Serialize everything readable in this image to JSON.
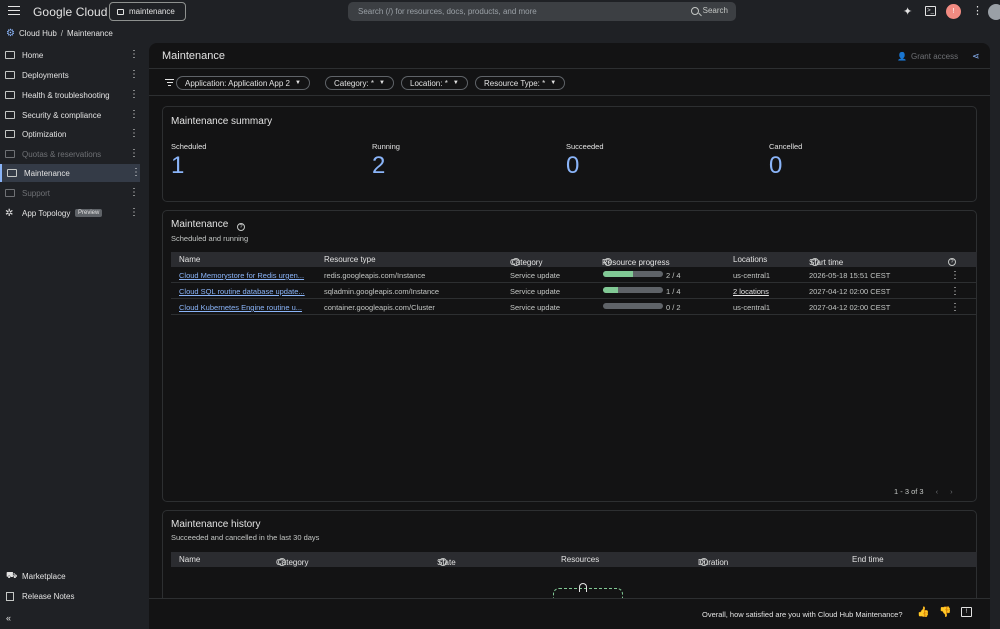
{
  "header": {
    "logo": "Google Cloud",
    "project": "maintenance",
    "search_placeholder": "Search (/) for resources, docs, products, and more",
    "search_button": "Search",
    "avatar_letter": "!"
  },
  "breadcrumb": {
    "root": "Cloud Hub",
    "sep": "/",
    "current": "Maintenance"
  },
  "sidebar": {
    "items": [
      {
        "label": "Home"
      },
      {
        "label": "Deployments"
      },
      {
        "label": "Health & troubleshooting"
      },
      {
        "label": "Security & compliance"
      },
      {
        "label": "Optimization"
      },
      {
        "label": "Quotas & reservations"
      },
      {
        "label": "Maintenance"
      },
      {
        "label": "Support"
      },
      {
        "label": "App Topology",
        "badge": "Preview"
      }
    ],
    "footer": [
      {
        "label": "Marketplace"
      },
      {
        "label": "Release Notes"
      }
    ],
    "collapse_icon": "«"
  },
  "page": {
    "title": "Maintenance",
    "grant_access": "Grant access"
  },
  "filters": [
    "Application: Application App 2",
    "Category: *",
    "Location: *",
    "Resource Type: *"
  ],
  "summary": {
    "title": "Maintenance summary",
    "stats": [
      {
        "label": "Scheduled",
        "value": "1"
      },
      {
        "label": "Running",
        "value": "2"
      },
      {
        "label": "Succeeded",
        "value": "0"
      },
      {
        "label": "Cancelled",
        "value": "0"
      }
    ]
  },
  "maintenance": {
    "title": "Maintenance",
    "subtitle": "Scheduled and running",
    "columns": [
      "Name",
      "Resource type",
      "Category",
      "Resource progress",
      "Locations",
      "Start time"
    ],
    "rows": [
      {
        "name": "Cloud Memorystore for Redis urgen...",
        "type": "redis.googleapis.com/Instance",
        "category": "Service update",
        "progress_text": "2 / 4",
        "progress": 0.5,
        "location": "us-central1",
        "start": "2026-05-18 15:51 CEST"
      },
      {
        "name": "Cloud SQL routine database update...",
        "type": "sqladmin.googleapis.com/Instance",
        "category": "Service update",
        "progress_text": "1 / 4",
        "progress": 0.25,
        "location": "2 locations",
        "start": "2027-04-12 02:00 CEST"
      },
      {
        "name": "Cloud Kubernetes Engine routine u...",
        "type": "container.googleapis.com/Cluster",
        "category": "Service update",
        "progress_text": "0 / 2",
        "progress": 0,
        "location": "us-central1",
        "start": "2027-04-12 02:00 CEST"
      }
    ],
    "pager": "1 - 3 of 3"
  },
  "history": {
    "title": "Maintenance history",
    "subtitle": "Succeeded and cancelled in the last 30 days",
    "columns": [
      "Name",
      "Category",
      "State",
      "Resources",
      "Duration",
      "End time"
    ]
  },
  "feedback": {
    "question": "Overall, how satisfied are you with Cloud Hub Maintenance?"
  }
}
